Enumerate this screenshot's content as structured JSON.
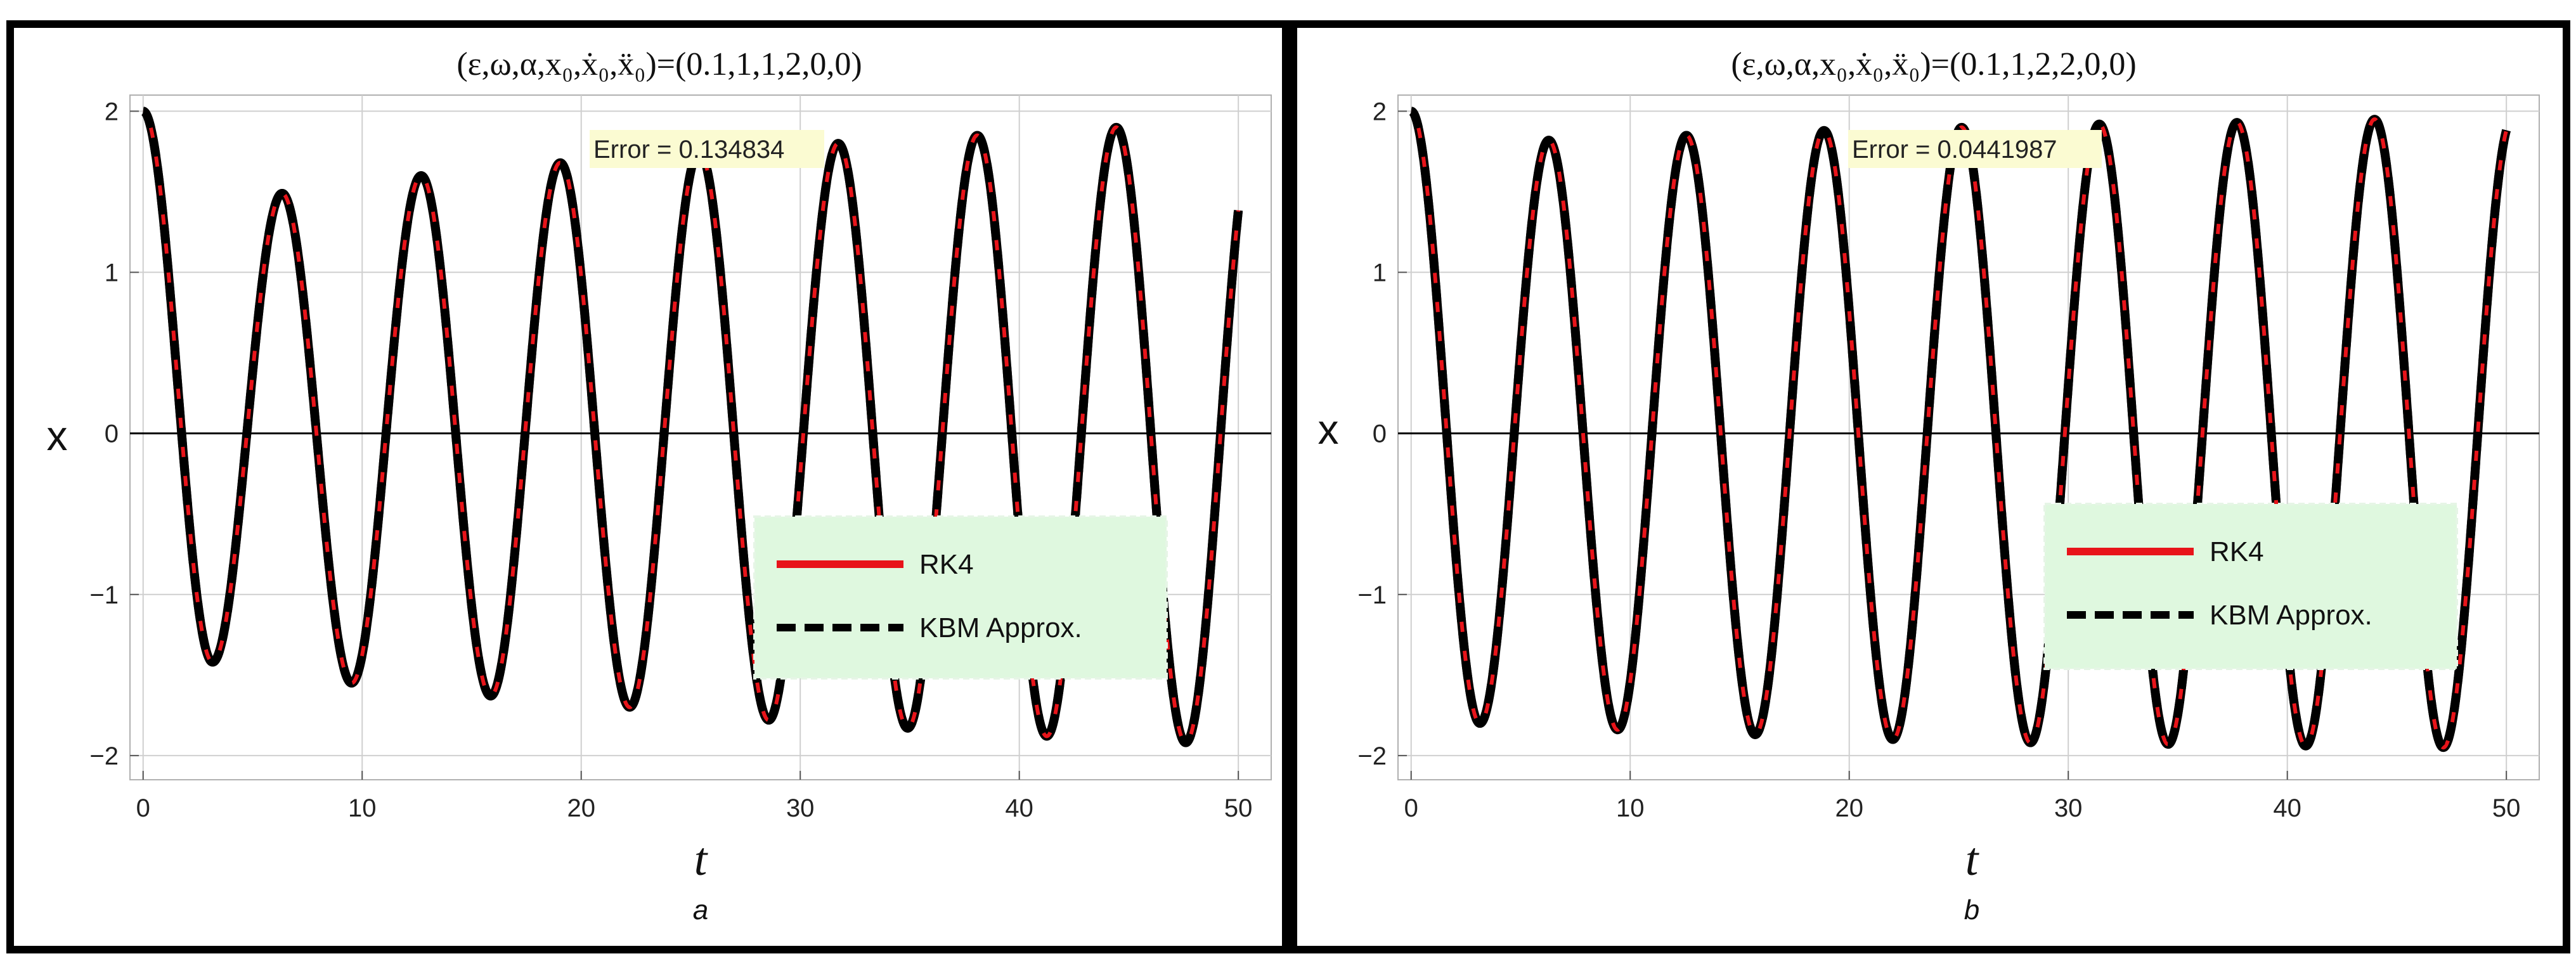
{
  "colors": {
    "rk4": "#e8141a",
    "kbm": "#000000",
    "legend_bg": "#dff8df",
    "error_bg": "#fbfbd2"
  },
  "chart_data": [
    {
      "type": "line",
      "panel": "a",
      "title": "(ε,ω,α,x₀,ẋ₀,ẍ₀)=(0.1,1,1,2,0,0)",
      "xlabel": "t",
      "ylabel": "x",
      "sublabel": "a",
      "error_text": "Error = 0.134834",
      "xlim": [
        -0.6,
        51.5
      ],
      "ylim": [
        -2.15,
        2.1
      ],
      "xticks": [
        0,
        10,
        20,
        30,
        40,
        50
      ],
      "xtick_labels": [
        "0",
        "10",
        "20",
        "30",
        "40",
        "50"
      ],
      "yticks": [
        -2,
        -1,
        0,
        1,
        2
      ],
      "ytick_labels": [
        "−2",
        "−1",
        "0",
        "1",
        "2"
      ],
      "grid": true,
      "legend_position": "lower-right",
      "t_range": [
        0,
        50
      ],
      "initial_amplitude": 2.0,
      "min_amplitude": 1.4,
      "peak_values": [
        2.0,
        1.49,
        1.6,
        1.68,
        1.75,
        1.8,
        1.85,
        1.9
      ],
      "trough_values": [
        -1.42,
        -1.55,
        -1.63,
        -1.7,
        -1.78,
        -1.83,
        -1.88,
        -1.92
      ],
      "angular_frequency": 0.99,
      "series": [
        {
          "name": "RK4",
          "style": "solid"
        },
        {
          "name": "KBM Approx.",
          "style": "dashed"
        }
      ]
    },
    {
      "type": "line",
      "panel": "b",
      "title": "(ε,ω,α,x₀,ẋ₀,ẍ₀)=(0.1,1,2,2,0,0)",
      "xlabel": "t",
      "ylabel": "x",
      "sublabel": "b",
      "error_text": "Error = 0.0441987",
      "xlim": [
        -0.6,
        51.5
      ],
      "ylim": [
        -2.15,
        2.1
      ],
      "xticks": [
        0,
        10,
        20,
        30,
        40,
        50
      ],
      "xtick_labels": [
        "0",
        "10",
        "20",
        "30",
        "40",
        "50"
      ],
      "yticks": [
        -2,
        -1,
        0,
        1,
        2
      ],
      "ytick_labels": [
        "−2",
        "−1",
        "0",
        "1",
        "2"
      ],
      "grid": true,
      "legend_position": "center-right",
      "t_range": [
        0,
        50
      ],
      "initial_amplitude": 2.0,
      "min_amplitude": 1.78,
      "peak_values": [
        2.0,
        1.82,
        1.85,
        1.88,
        1.9,
        1.92,
        1.93,
        1.95
      ],
      "trough_values": [
        -1.8,
        -1.84,
        -1.87,
        -1.9,
        -1.92,
        -1.93,
        -1.94,
        -1.95
      ],
      "angular_frequency": 1.0,
      "series": [
        {
          "name": "RK4",
          "style": "solid"
        },
        {
          "name": "KBM Approx.",
          "style": "dashed"
        }
      ]
    }
  ]
}
